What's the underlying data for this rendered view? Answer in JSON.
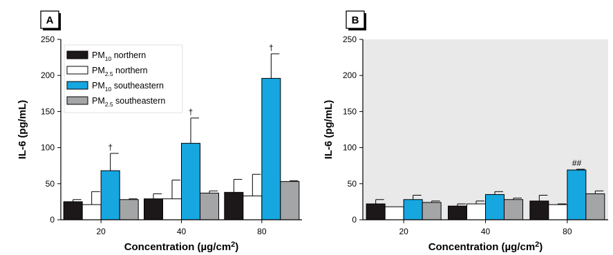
{
  "colors": {
    "pm10_northern": "#1c1718",
    "pm25_northern": "#ffffff",
    "pm10_southeastern": "#16a6e0",
    "pm25_southeastern": "#a4a5a7",
    "plot_bg": "#e9e9ea"
  },
  "chart_data": [
    {
      "type": "bar",
      "panel_label": "A",
      "xlabel": "Concentration (µg/cm2)",
      "ylabel": "IL-6 (pg/mL)",
      "ylim": [
        0,
        250
      ],
      "yticks": [
        0,
        50,
        100,
        150,
        200,
        250
      ],
      "categories": [
        "20",
        "40",
        "80"
      ],
      "legend": "top-left",
      "series": [
        {
          "name": "PM10 northern",
          "name_main": "PM",
          "name_sub": "10",
          "name_rest": " northern",
          "color": "#1c1718",
          "values": [
            25,
            29,
            38
          ],
          "errors": [
            3,
            7,
            18
          ]
        },
        {
          "name": "PM2.5 northern",
          "name_main": "PM",
          "name_sub": "2.5",
          "name_rest": " northern",
          "color": "#ffffff",
          "values": [
            21,
            29,
            33
          ],
          "errors": [
            18,
            26,
            30
          ]
        },
        {
          "name": "PM10 southeastern",
          "name_main": "PM",
          "name_sub": "10",
          "name_rest": " southeastern",
          "color": "#16a6e0",
          "values": [
            68,
            106,
            196
          ],
          "errors": [
            24,
            35,
            34
          ]
        },
        {
          "name": "PM2.5 southeastern",
          "name_main": "PM",
          "name_sub": "2.5",
          "name_rest": " southeastern",
          "color": "#a4a5a7",
          "values": [
            28,
            37,
            53
          ],
          "errors": [
            1,
            3,
            1
          ]
        }
      ],
      "annotations": [
        {
          "text": "†",
          "category": 0,
          "series": 2
        },
        {
          "text": "†",
          "category": 1,
          "series": 2
        },
        {
          "text": "†",
          "category": 2,
          "series": 2
        }
      ]
    },
    {
      "type": "bar",
      "panel_label": "B",
      "xlabel": "Concentration (µg/cm2)",
      "ylabel": "IL-6 (pg/mL)",
      "ylim": [
        0,
        250
      ],
      "yticks": [
        0,
        50,
        100,
        150,
        200,
        250
      ],
      "categories": [
        "20",
        "40",
        "80"
      ],
      "series": [
        {
          "name": "PM10 northern",
          "color": "#1c1718",
          "values": [
            22,
            19,
            26
          ],
          "errors": [
            6,
            3,
            8
          ]
        },
        {
          "name": "PM2.5 northern",
          "color": "#ffffff",
          "values": [
            18,
            22,
            21
          ],
          "errors": [
            0,
            4,
            1
          ]
        },
        {
          "name": "PM10 southeastern",
          "color": "#16a6e0",
          "values": [
            28,
            35,
            69
          ],
          "errors": [
            6,
            4,
            1
          ]
        },
        {
          "name": "PM2.5 southeastern",
          "color": "#a4a5a7",
          "values": [
            24,
            28,
            36
          ],
          "errors": [
            2,
            2,
            4
          ]
        }
      ],
      "annotations": [
        {
          "text": "##",
          "category": 2,
          "series": 2
        }
      ]
    }
  ]
}
